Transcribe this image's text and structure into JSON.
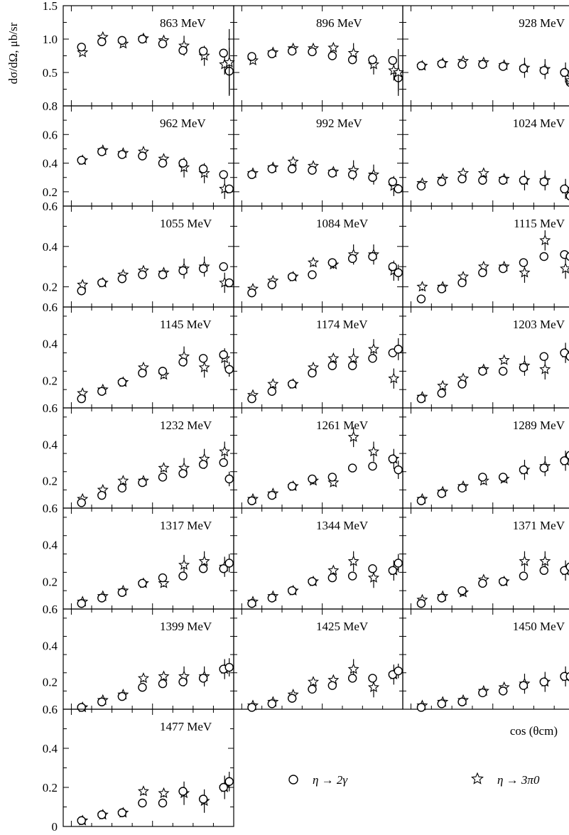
{
  "chart_data": {
    "type": "scatter",
    "ylabel": "dσ/dΩ, μb/sr",
    "xlabel": "cos (θcm)",
    "xlim": [
      -1.1,
      1
    ],
    "x_ticks": [
      -1,
      0,
      1
    ],
    "legend": [
      {
        "name": "η → 2γ",
        "marker": "circle"
      },
      {
        "name": "η → 3π0",
        "marker": "star"
      }
    ],
    "panels": [
      {
        "energy": "863 MeV",
        "ylim": [
          0,
          1.5
        ],
        "y_ticks": [
          0.5,
          1.0,
          1.5
        ],
        "x": [
          -0.875,
          -0.625,
          -0.375,
          -0.125,
          0.125,
          0.375,
          0.625,
          0.875
        ],
        "circle": [
          0.88,
          0.96,
          0.98,
          1.0,
          0.93,
          0.83,
          0.82,
          0.79
        ],
        "circle_extra": {
          "x": 0.98,
          "y": 0.52,
          "err": 0.35
        },
        "star": [
          0.8,
          1.03,
          0.93,
          1.01,
          0.98,
          0.9,
          0.75,
          0.62
        ],
        "star_extra": {
          "x": 0.98,
          "y": 0.65,
          "err": 0.5
        }
      },
      {
        "energy": "896 MeV",
        "ylim": [
          0,
          1.5
        ],
        "y_ticks": [
          0.5,
          1.0,
          1.5
        ],
        "x": [
          -0.875,
          -0.625,
          -0.375,
          -0.125,
          0.125,
          0.375,
          0.625,
          0.875
        ],
        "circle": [
          0.74,
          0.78,
          0.82,
          0.81,
          0.75,
          0.69,
          0.69,
          0.68
        ],
        "circle_extra": {
          "x": 0.98,
          "y": 0.42,
          "err": 0.2
        },
        "star": [
          0.68,
          0.8,
          0.86,
          0.86,
          0.87,
          0.79,
          0.62,
          0.53
        ],
        "star_extra": {
          "x": 0.98,
          "y": 0.5,
          "err": 0.35
        }
      },
      {
        "energy": "928 MeV",
        "ylim": [
          0,
          1.5
        ],
        "y_ticks": [
          0.5,
          1.0,
          1.5
        ],
        "x": [
          -0.875,
          -0.625,
          -0.375,
          -0.125,
          0.125,
          0.375,
          0.625,
          0.875
        ],
        "circle": [
          0.6,
          0.63,
          0.62,
          0.62,
          0.59,
          0.56,
          0.53,
          0.5
        ],
        "circle_extra": {
          "x": 0.98,
          "y": 0.35,
          "err": 0.15
        },
        "star": [
          0.6,
          0.64,
          0.67,
          0.65,
          0.61,
          0.57,
          0.55,
          0.5
        ],
        "star_extra": {
          "x": 0.98,
          "y": 0.38,
          "err": 0.3
        }
      },
      {
        "energy": "962 MeV",
        "ylim": [
          0.1,
          0.8
        ],
        "y_ticks": [
          0.2,
          0.4,
          0.6,
          0.8
        ],
        "x": [
          -0.875,
          -0.625,
          -0.375,
          -0.125,
          0.125,
          0.375,
          0.625,
          0.875
        ],
        "circle": [
          0.42,
          0.48,
          0.46,
          0.45,
          0.4,
          0.4,
          0.36,
          0.32
        ],
        "circle_extra": {
          "x": 0.98,
          "y": 0.22,
          "err": 0.02
        },
        "star": [
          0.42,
          0.49,
          0.47,
          0.48,
          0.43,
          0.37,
          0.33,
          0.22
        ]
      },
      {
        "energy": "992 MeV",
        "ylim": [
          0.1,
          0.8
        ],
        "y_ticks": [
          0.2,
          0.4,
          0.6,
          0.8
        ],
        "x": [
          -0.875,
          -0.625,
          -0.375,
          -0.125,
          0.125,
          0.375,
          0.625,
          0.875
        ],
        "circle": [
          0.32,
          0.36,
          0.36,
          0.35,
          0.33,
          0.32,
          0.3,
          0.27
        ],
        "circle_extra": {
          "x": 0.98,
          "y": 0.22,
          "err": 0.02
        },
        "star": [
          0.33,
          0.37,
          0.41,
          0.38,
          0.34,
          0.35,
          0.32,
          0.24
        ]
      },
      {
        "energy": "1024 MeV",
        "ylim": [
          0.1,
          0.8
        ],
        "y_ticks": [
          0.2,
          0.4,
          0.6,
          0.8
        ],
        "x": [
          -0.875,
          -0.625,
          -0.375,
          -0.125,
          0.125,
          0.375,
          0.625,
          0.875
        ],
        "circle": [
          0.24,
          0.27,
          0.29,
          0.28,
          0.28,
          0.28,
          0.27,
          0.22
        ],
        "circle_extra": {
          "x": 0.98,
          "y": 0.17,
          "err": 0.02
        },
        "star": [
          0.26,
          0.29,
          0.33,
          0.33,
          0.29,
          0.28,
          0.28,
          0.22
        ]
      },
      {
        "energy": "1055 MeV",
        "ylim": [
          0.1,
          0.6
        ],
        "y_ticks": [
          0.2,
          0.4,
          0.6
        ],
        "x": [
          -0.875,
          -0.625,
          -0.375,
          -0.125,
          0.125,
          0.375,
          0.625,
          0.875
        ],
        "circle": [
          0.18,
          0.22,
          0.24,
          0.26,
          0.26,
          0.28,
          0.29,
          0.3
        ],
        "circle_extra": {
          "x": 0.98,
          "y": 0.22,
          "err": 0.02
        },
        "star": [
          0.21,
          0.22,
          0.26,
          0.28,
          0.27,
          0.29,
          0.3,
          0.22
        ]
      },
      {
        "energy": "1084 MeV",
        "ylim": [
          0.1,
          0.6
        ],
        "y_ticks": [
          0.2,
          0.4,
          0.6
        ],
        "x": [
          -0.875,
          -0.625,
          -0.375,
          -0.125,
          0.125,
          0.375,
          0.625,
          0.875
        ],
        "circle": [
          0.17,
          0.21,
          0.25,
          0.26,
          0.32,
          0.34,
          0.35,
          0.3
        ],
        "circle_extra": {
          "x": 0.98,
          "y": 0.27,
          "err": 0.04
        },
        "star": [
          0.19,
          0.23,
          0.25,
          0.32,
          0.31,
          0.36,
          0.36,
          0.28
        ]
      },
      {
        "energy": "1115 MeV",
        "ylim": [
          0.1,
          0.6
        ],
        "y_ticks": [
          0.2,
          0.4,
          0.6
        ],
        "x": [
          -0.875,
          -0.625,
          -0.375,
          -0.125,
          0.125,
          0.375,
          0.625,
          0.875
        ],
        "circle": [
          0.14,
          0.19,
          0.22,
          0.27,
          0.29,
          0.32,
          0.35,
          0.36
        ],
        "circle_extra": {
          "x": 0.98,
          "y": 0.35,
          "err": 0.04
        },
        "star": [
          0.2,
          0.2,
          0.25,
          0.3,
          0.3,
          0.27,
          0.43,
          0.29
        ]
      },
      {
        "energy": "1145 MeV",
        "ylim": [
          0.05,
          0.6
        ],
        "y_ticks": [
          0.2,
          0.4,
          0.6
        ],
        "x": [
          -0.875,
          -0.625,
          -0.375,
          -0.125,
          0.125,
          0.375,
          0.625,
          0.875
        ],
        "circle": [
          0.1,
          0.14,
          0.19,
          0.24,
          0.25,
          0.3,
          0.32,
          0.34
        ],
        "circle_extra": {
          "x": 0.98,
          "y": 0.26,
          "err": 0.04
        },
        "star": [
          0.13,
          0.15,
          0.19,
          0.27,
          0.23,
          0.33,
          0.27,
          0.32
        ]
      },
      {
        "energy": "1174 MeV",
        "ylim": [
          0.05,
          0.6
        ],
        "y_ticks": [
          0.2,
          0.4,
          0.6
        ],
        "x": [
          -0.875,
          -0.625,
          -0.375,
          -0.125,
          0.125,
          0.375,
          0.625,
          0.875
        ],
        "circle": [
          0.1,
          0.14,
          0.18,
          0.24,
          0.28,
          0.28,
          0.32,
          0.35
        ],
        "circle_extra": {
          "x": 0.98,
          "y": 0.37,
          "err": 0.06
        },
        "star": [
          0.12,
          0.18,
          0.18,
          0.27,
          0.32,
          0.32,
          0.37,
          0.21
        ]
      },
      {
        "energy": "1203 MeV",
        "ylim": [
          0.05,
          0.6
        ],
        "y_ticks": [
          0.2,
          0.4,
          0.6
        ],
        "x": [
          -0.875,
          -0.625,
          -0.375,
          -0.125,
          0.125,
          0.375,
          0.625,
          0.875
        ],
        "circle": [
          0.1,
          0.13,
          0.18,
          0.25,
          0.25,
          0.27,
          0.33,
          0.35
        ],
        "circle_extra": {
          "x": 0.98,
          "y": 0.33,
          "err": 0.06
        },
        "star": [
          0.11,
          0.17,
          0.21,
          0.26,
          0.31,
          0.28,
          0.26,
          0.35
        ]
      },
      {
        "energy": "1232 MeV",
        "ylim": [
          0.05,
          0.6
        ],
        "y_ticks": [
          0.2,
          0.4,
          0.6
        ],
        "x": [
          -0.875,
          -0.625,
          -0.375,
          -0.125,
          0.125,
          0.375,
          0.625,
          0.875
        ],
        "circle": [
          0.08,
          0.12,
          0.16,
          0.19,
          0.22,
          0.24,
          0.29,
          0.3
        ],
        "circle_extra": {
          "x": 0.98,
          "y": 0.21,
          "err": 0.04
        },
        "star": [
          0.1,
          0.15,
          0.2,
          0.2,
          0.27,
          0.27,
          0.32,
          0.36
        ]
      },
      {
        "energy": "1261 MeV",
        "ylim": [
          0.05,
          0.6
        ],
        "y_ticks": [
          0.2,
          0.4,
          0.6
        ],
        "x": [
          -0.875,
          -0.625,
          -0.375,
          -0.125,
          0.125,
          0.375,
          0.625,
          0.875
        ],
        "circle": [
          0.09,
          0.12,
          0.17,
          0.21,
          0.22,
          0.27,
          0.28,
          0.32
        ],
        "circle_extra": {
          "x": 0.98,
          "y": 0.26,
          "err": 0.05
        },
        "star": [
          0.1,
          0.13,
          0.17,
          0.2,
          0.19,
          0.44,
          0.36,
          0.32
        ]
      },
      {
        "energy": "1289 MeV",
        "ylim": [
          0.05,
          0.6
        ],
        "y_ticks": [
          0.2,
          0.4,
          0.6
        ],
        "x": [
          -0.875,
          -0.625,
          -0.375,
          -0.125,
          0.125,
          0.375,
          0.625,
          0.875
        ],
        "circle": [
          0.09,
          0.13,
          0.16,
          0.22,
          0.22,
          0.26,
          0.27,
          0.31
        ],
        "circle_extra": {
          "x": 0.98,
          "y": 0.34,
          "err": 0.05
        },
        "star": [
          0.1,
          0.14,
          0.17,
          0.2,
          0.21,
          0.26,
          0.28,
          0.31
        ]
      },
      {
        "energy": "1317 MeV",
        "ylim": [
          0.05,
          0.6
        ],
        "y_ticks": [
          0.2,
          0.4,
          0.6
        ],
        "x": [
          -0.875,
          -0.625,
          -0.375,
          -0.125,
          0.125,
          0.375,
          0.625,
          0.875
        ],
        "circle": [
          0.08,
          0.11,
          0.14,
          0.19,
          0.22,
          0.23,
          0.27,
          0.27
        ],
        "circle_extra": {
          "x": 0.98,
          "y": 0.3,
          "err": 0.05
        },
        "star": [
          0.09,
          0.12,
          0.15,
          0.19,
          0.19,
          0.29,
          0.31,
          0.28
        ]
      },
      {
        "energy": "1344 MeV",
        "ylim": [
          0.05,
          0.6
        ],
        "y_ticks": [
          0.2,
          0.4,
          0.6
        ],
        "x": [
          -0.875,
          -0.625,
          -0.375,
          -0.125,
          0.125,
          0.375,
          0.625,
          0.875
        ],
        "circle": [
          0.08,
          0.11,
          0.15,
          0.2,
          0.22,
          0.23,
          0.27,
          0.26
        ],
        "circle_extra": {
          "x": 0.98,
          "y": 0.3,
          "err": 0.05
        },
        "star": [
          0.09,
          0.12,
          0.15,
          0.2,
          0.26,
          0.31,
          0.22,
          0.26
        ]
      },
      {
        "energy": "1371 MeV",
        "ylim": [
          0.05,
          0.6
        ],
        "y_ticks": [
          0.2,
          0.4,
          0.6
        ],
        "x": [
          -0.875,
          -0.625,
          -0.375,
          -0.125,
          0.125,
          0.375,
          0.625,
          0.875
        ],
        "circle": [
          0.08,
          0.11,
          0.15,
          0.19,
          0.2,
          0.23,
          0.26,
          0.26
        ],
        "circle_extra": {
          "x": 0.98,
          "y": 0.28,
          "err": 0.05
        },
        "star": [
          0.1,
          0.12,
          0.14,
          0.21,
          0.2,
          0.31,
          0.31,
          0.26
        ]
      },
      {
        "energy": "1399 MeV",
        "ylim": [
          0.05,
          0.6
        ],
        "y_ticks": [
          0.2,
          0.4,
          0.6
        ],
        "x": [
          -0.875,
          -0.625,
          -0.375,
          -0.125,
          0.125,
          0.375,
          0.625,
          0.875
        ],
        "circle": [
          0.06,
          0.09,
          0.12,
          0.17,
          0.19,
          0.2,
          0.22,
          0.27
        ],
        "circle_extra": {
          "x": 0.98,
          "y": 0.28,
          "err": 0.05
        },
        "star": [
          0.06,
          0.1,
          0.13,
          0.22,
          0.23,
          0.23,
          0.23,
          0.27
        ]
      },
      {
        "energy": "1425 MeV",
        "ylim": [
          0.05,
          0.6
        ],
        "y_ticks": [
          0.2,
          0.4,
          0.6
        ],
        "x": [
          -0.875,
          -0.625,
          -0.375,
          -0.125,
          0.125,
          0.375,
          0.625,
          0.875
        ],
        "circle": [
          0.06,
          0.08,
          0.11,
          0.16,
          0.18,
          0.22,
          0.22,
          0.24
        ],
        "circle_extra": {
          "x": 0.98,
          "y": 0.26,
          "err": 0.04
        },
        "star": [
          0.07,
          0.09,
          0.13,
          0.2,
          0.21,
          0.27,
          0.17,
          0.24
        ]
      },
      {
        "energy": "1450 MeV",
        "ylim": [
          0.05,
          0.6
        ],
        "y_ticks": [
          0.2,
          0.4,
          0.6
        ],
        "x": [
          -0.875,
          -0.625,
          -0.375,
          -0.125,
          0.125,
          0.375,
          0.625,
          0.875
        ],
        "circle": [
          0.06,
          0.08,
          0.09,
          0.14,
          0.15,
          0.18,
          0.2,
          0.23
        ],
        "circle_extra": {
          "x": 0.98,
          "y": 0.23,
          "err": 0.04
        },
        "star": [
          0.07,
          0.09,
          0.1,
          0.15,
          0.17,
          0.19,
          0.2,
          0.23
        ]
      },
      {
        "energy": "1477 MeV",
        "ylim": [
          0,
          0.6
        ],
        "y_ticks": [
          0,
          0.2,
          0.4,
          0.6
        ],
        "x": [
          -0.875,
          -0.625,
          -0.375,
          -0.125,
          0.125,
          0.375,
          0.625,
          0.875
        ],
        "circle": [
          0.03,
          0.06,
          0.07,
          0.12,
          0.12,
          0.18,
          0.14,
          0.2
        ],
        "circle_extra": {
          "x": 0.98,
          "y": 0.23,
          "err": 0.05
        },
        "star": [
          0.03,
          0.06,
          0.07,
          0.18,
          0.17,
          0.17,
          0.13,
          0.2
        ]
      }
    ]
  }
}
